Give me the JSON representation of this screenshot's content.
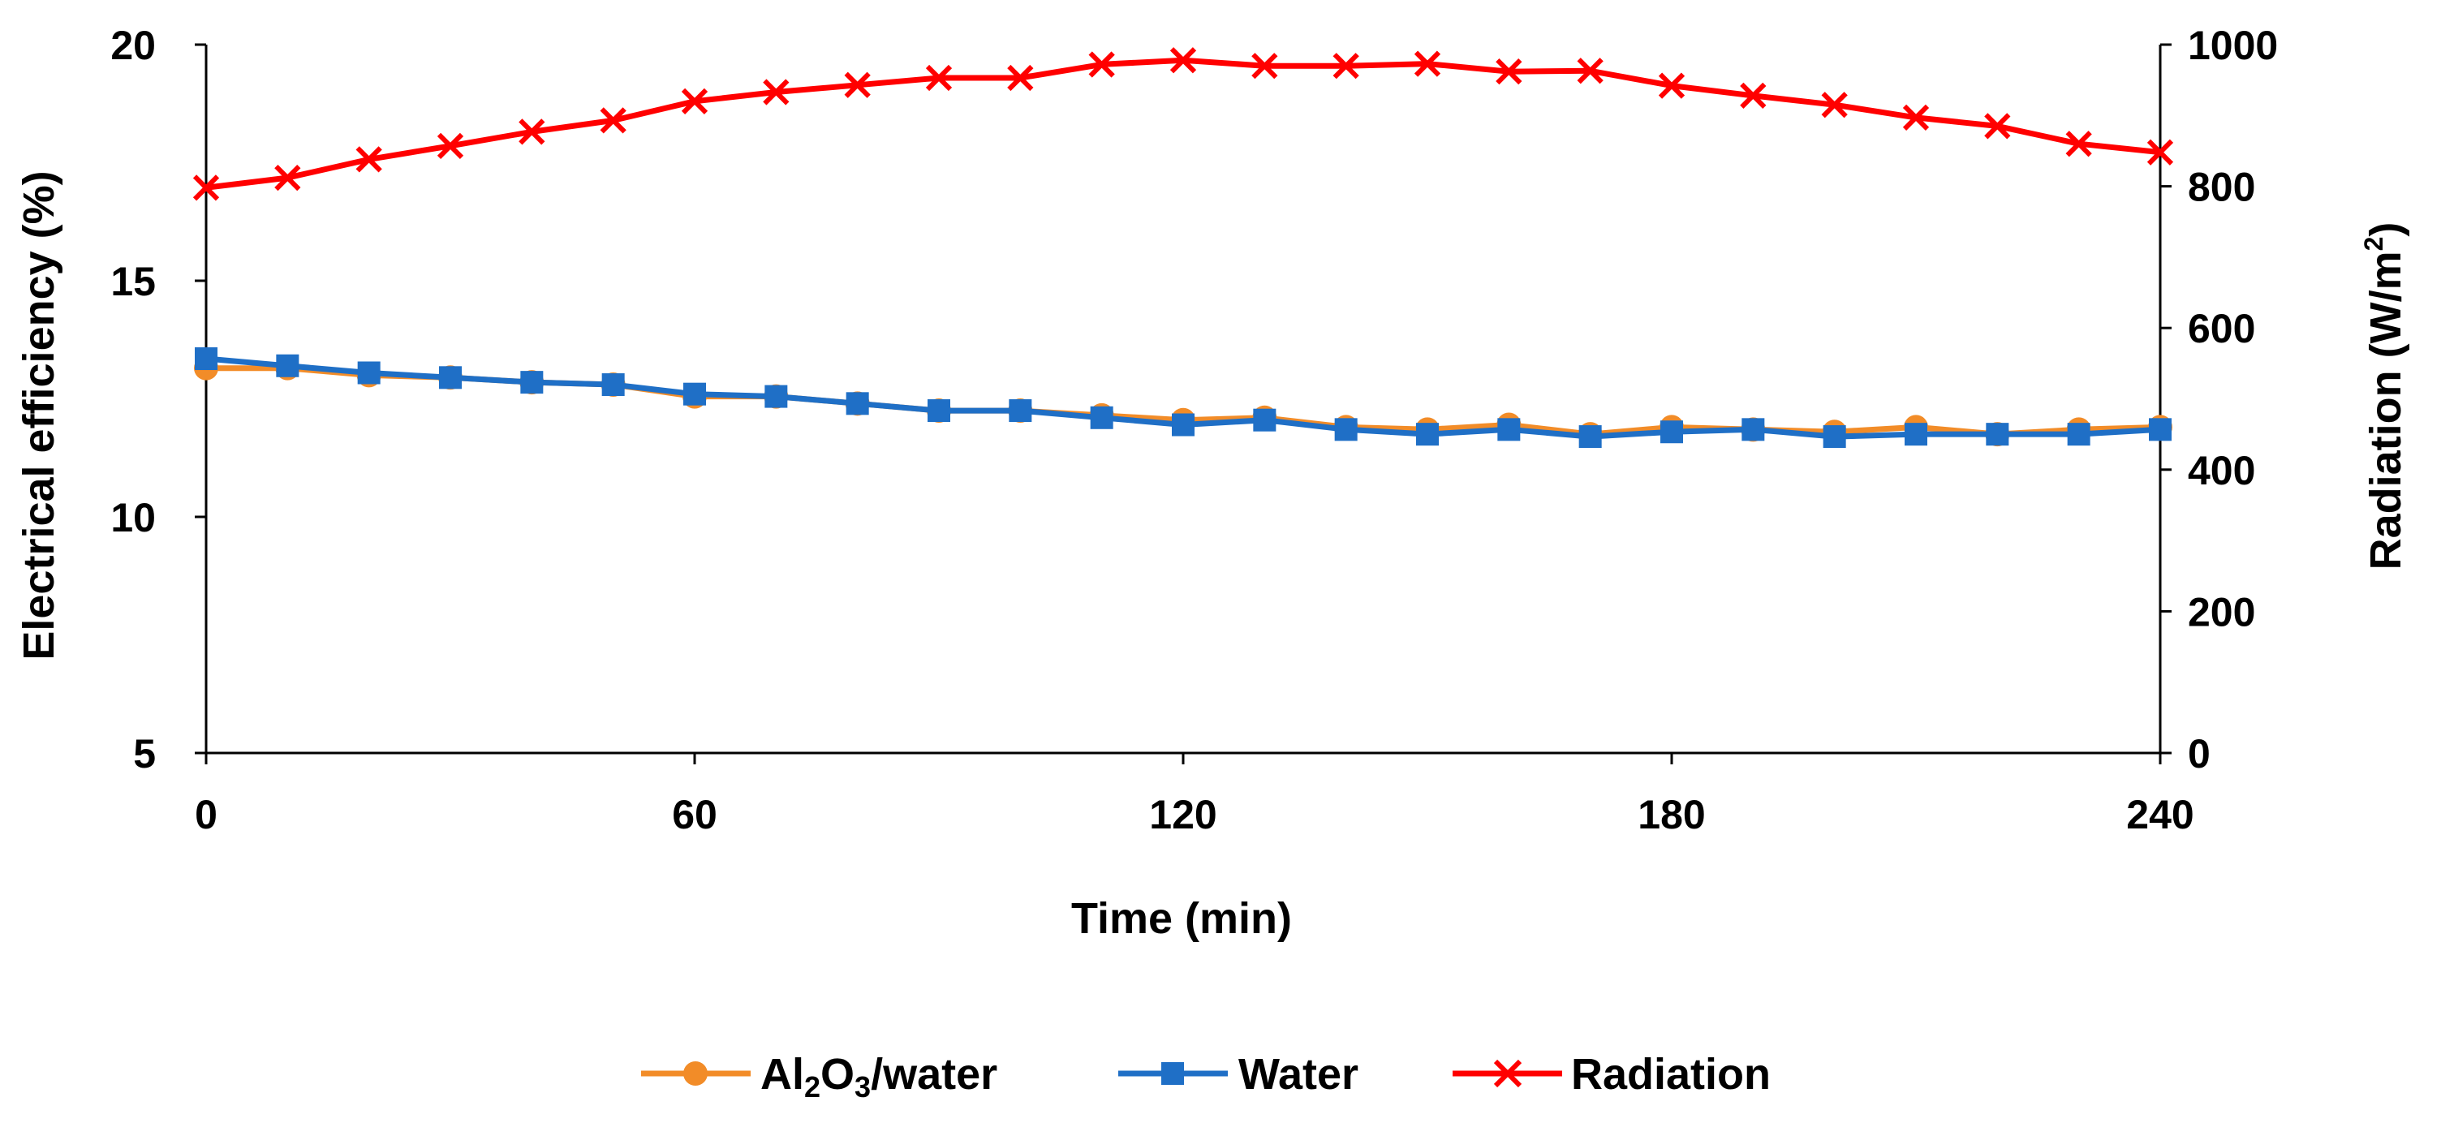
{
  "chart_data": {
    "type": "line",
    "xlabel": "Time (min)",
    "ylabel_left": "Electrical efficiency (%)",
    "ylabel_right_main": "Radiation (W/m",
    "ylabel_right_sup": "2",
    "ylabel_right_end": ")",
    "xlim": [
      0,
      240
    ],
    "ylim_left": [
      5,
      20
    ],
    "ylim_right": [
      0,
      1000
    ],
    "x_ticks": [
      0,
      60,
      120,
      180,
      240
    ],
    "y_left_ticks": [
      5,
      10,
      15,
      20
    ],
    "y_right_ticks": [
      0,
      200,
      400,
      600,
      800,
      1000
    ],
    "x": [
      0,
      10,
      20,
      30,
      40,
      50,
      60,
      70,
      80,
      90,
      100,
      110,
      120,
      130,
      140,
      150,
      160,
      170,
      180,
      190,
      200,
      210,
      220,
      230,
      240
    ],
    "series": [
      {
        "name": "Al2O3/water",
        "legend": {
          "p1": "Al",
          "s1": "2",
          "p2": "O",
          "s2": "3",
          "p3": "/water"
        },
        "axis": "left",
        "color": "#F28C28",
        "marker": "circle",
        "values": [
          13.15,
          13.15,
          13.0,
          12.95,
          12.85,
          12.8,
          12.55,
          12.55,
          12.4,
          12.25,
          12.25,
          12.15,
          12.05,
          12.1,
          11.9,
          11.85,
          11.95,
          11.75,
          11.9,
          11.85,
          11.8,
          11.9,
          11.75,
          11.85,
          11.9
        ]
      },
      {
        "name": "Water",
        "axis": "left",
        "color": "#1F6FC6",
        "marker": "square",
        "values": [
          13.35,
          13.2,
          13.05,
          12.95,
          12.85,
          12.8,
          12.6,
          12.55,
          12.4,
          12.25,
          12.25,
          12.1,
          11.95,
          12.05,
          11.85,
          11.75,
          11.85,
          11.7,
          11.8,
          11.85,
          11.7,
          11.75,
          11.75,
          11.75,
          11.85
        ]
      },
      {
        "name": "Radiation",
        "axis": "right",
        "color": "#FF0000",
        "marker": "x",
        "values": [
          798,
          812,
          838,
          857,
          877,
          893,
          920,
          933,
          943,
          953,
          953,
          972,
          978,
          970,
          970,
          973,
          962,
          963,
          942,
          928,
          915,
          897,
          885,
          860,
          848
        ]
      }
    ],
    "legend_position": "bottom-center",
    "grid": false
  }
}
